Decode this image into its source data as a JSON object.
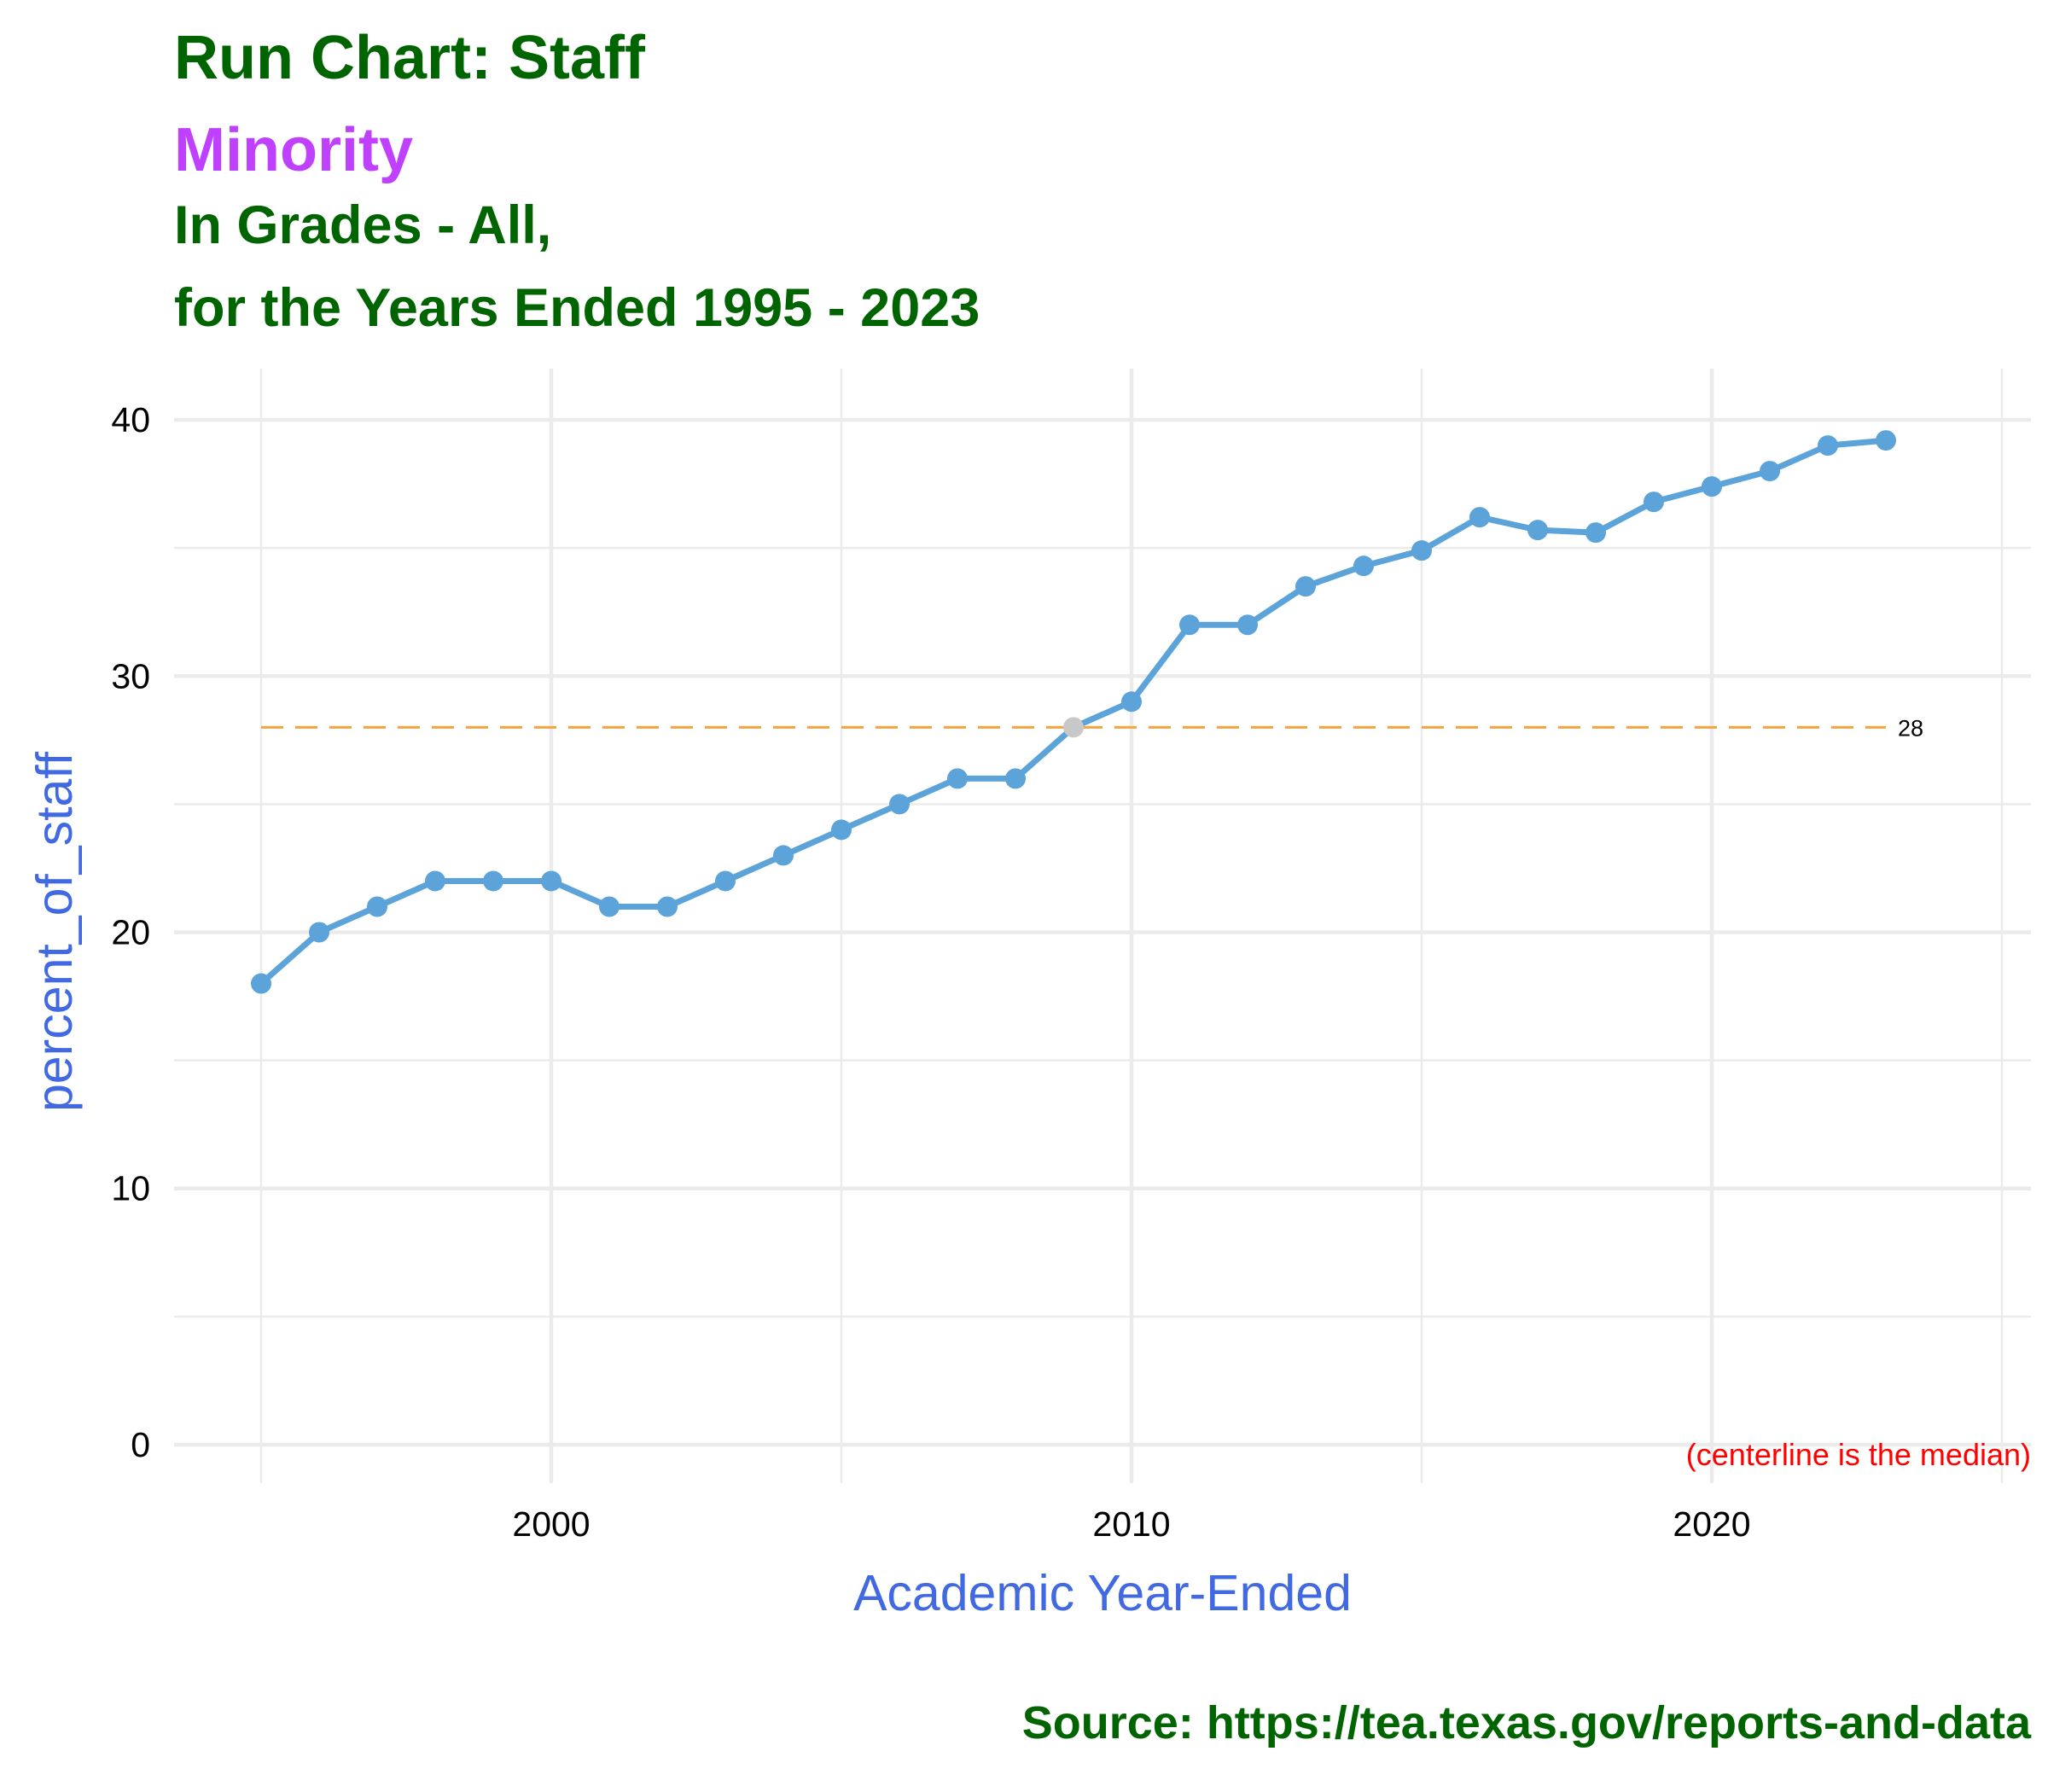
{
  "chart_data": {
    "type": "line",
    "title": "Run Chart: Staff",
    "subtitle_lines": [
      "Minority",
      "In Grades - All,",
      "for the Years Ended 1995 - 2023"
    ],
    "xlabel": "Academic Year-Ended",
    "ylabel": "percent_of_staff",
    "x": [
      1995,
      1996,
      1997,
      1998,
      1999,
      2000,
      2001,
      2002,
      2003,
      2004,
      2005,
      2006,
      2007,
      2008,
      2009,
      2010,
      2011,
      2012,
      2013,
      2014,
      2015,
      2016,
      2017,
      2018,
      2019,
      2020,
      2021,
      2022,
      2023
    ],
    "series": [
      {
        "values": [
          18,
          20,
          21,
          22,
          22,
          22,
          21,
          21,
          22,
          23,
          24,
          25,
          26,
          26,
          28,
          29,
          32,
          32,
          33.5,
          34.3,
          34.9,
          36.2,
          35.7,
          35.6,
          36.8,
          37.4,
          38,
          39,
          39.2
        ],
        "color": "#5ba3d9",
        "on_median_color": "#c8c8c8"
      }
    ],
    "centerline": {
      "value": 28,
      "label": "28",
      "color": "#f5a442",
      "style": "dashed"
    },
    "annotation": "(centerline is the median)",
    "annotation_color": "#ff0000",
    "xlim": [
      1993.5,
      2025.5
    ],
    "ylim": [
      -1.5,
      42
    ],
    "xticks": [
      2000,
      2010,
      2020
    ],
    "xtick_labels": [
      "2000",
      "2010",
      "2020"
    ],
    "yticks": [
      0,
      10,
      20,
      30,
      40
    ],
    "ytick_labels": [
      "0",
      "10",
      "20",
      "30",
      "40"
    ],
    "grid": true,
    "legend": "none"
  },
  "caption": "Source:  https://tea.texas.gov/reports-and-data",
  "colors": {
    "title": "#006400",
    "subtitle_highlight": "#bf40ff",
    "axis_title": "#4169e1",
    "grid": "#ebebeb"
  }
}
